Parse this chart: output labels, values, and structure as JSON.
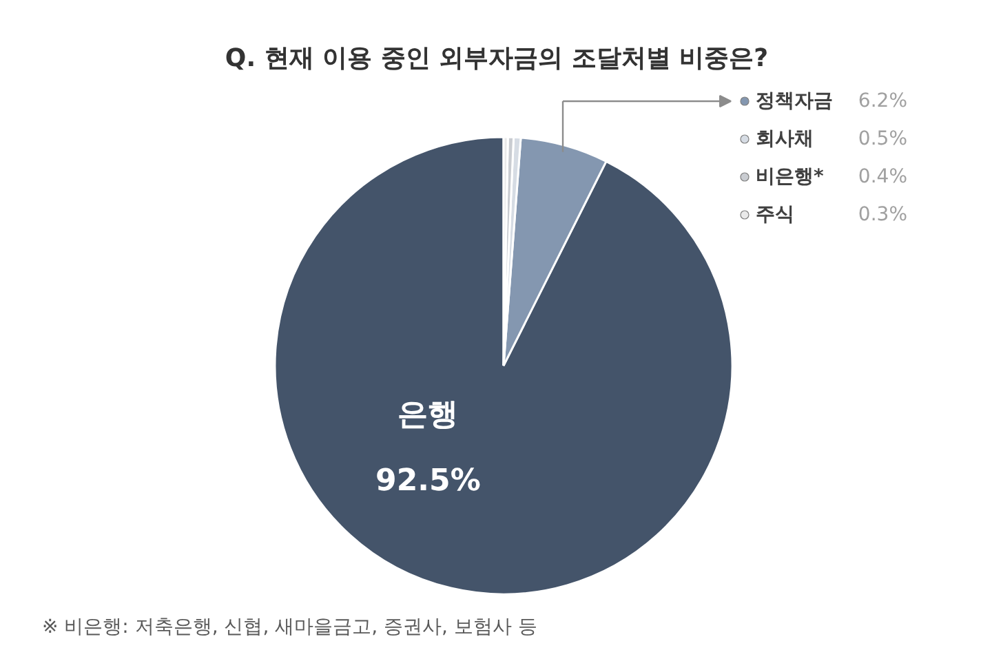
{
  "chart_data": {
    "type": "pie",
    "title": "Q. 현재 이용 중인 외부자금의 조달처별 비중은?",
    "categories": [
      "은행",
      "정책자금",
      "회사채",
      "비은행*",
      "주식"
    ],
    "values": [
      92.5,
      6.2,
      0.5,
      0.4,
      0.3
    ],
    "colors": [
      "#44546a",
      "#8497b0",
      "#d6dce4",
      "#c9ccd1",
      "#e9e9e9"
    ],
    "value_labels": [
      "92.5%",
      "6.2%",
      "0.5%",
      "0.4%",
      "0.3%"
    ],
    "legend": "top right",
    "annotations": [
      "※ 비은행: 저축은행, 신협, 새마을금고, 증권사, 보험사 등"
    ]
  }
}
